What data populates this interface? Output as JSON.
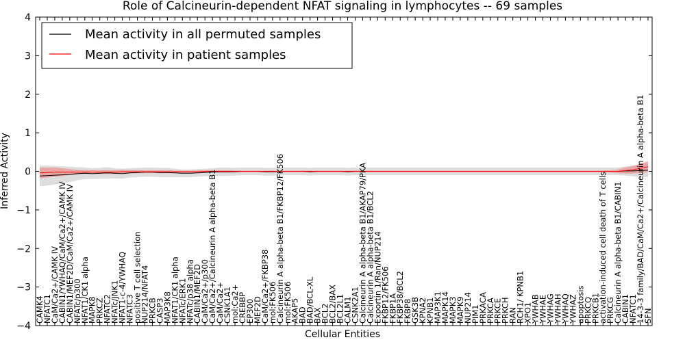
{
  "chart_data": {
    "type": "line",
    "title": "Role of Calcineurin-dependent NFAT signaling in lymphocytes -- 69 samples",
    "xlabel": "Cellular Entities",
    "ylabel": "Inferred Activity",
    "ylim": [
      -4,
      4
    ],
    "yticks": [
      -4,
      -3,
      -2,
      -1,
      0,
      1,
      2,
      3,
      4
    ],
    "ytick_labels": [
      "−4",
      "−3",
      "−2",
      "−1",
      "0",
      "1",
      "2",
      "3",
      "4"
    ],
    "grid": false,
    "legend_position": "top-left",
    "categories": [
      "CAMK4",
      "NFATC1",
      "CaM/Ca2+/CAMK IV",
      "CABIN1/YWHAQ/CaM/Ca2+/CAMK IV",
      "CABIN1/MEF2D/CaM/Ca2+/CAMK IV",
      "NFATc/p300",
      "NFAT1/CK1 alpha",
      "MAPK8",
      "PRKCZ",
      "NFATC2",
      "NFATc/JNK1",
      "NFAT1-c-4/YWHAQ",
      "NFATC3",
      "positive T cell selection",
      "NUP214/NFAT4",
      "PRKCB",
      "CASP3",
      "MAP3K8",
      "NFAT1/CK1 alpha",
      "NFATc/ERK1",
      "NFATc/p38 alpha",
      "CABIN1/MEF2D",
      "CaM/Ca2+/p300",
      "CaM/Ca2+/Calcineurin A alpha-beta B1",
      "CaM/Ca2+",
      "CSNK1A1",
      "mol:Ca2+",
      "CREBBP",
      "EP300",
      "MEF2D",
      "CaM/Ca2+/FKBP38",
      "mol:FK506",
      "Calcineurin A alpha-beta B1/FKBP12/FK506",
      "mol:FK506",
      "AKAP5",
      "BAD",
      "BAD/BCL-XL",
      "BAX",
      "BCL2",
      "BCL2/BAX",
      "BCL2L1",
      "CALM1",
      "CSNK2A1",
      "Calcineurin A alpha-beta B1/AKAP79/PKA",
      "Calcineurin A alpha-beta B1/BCL2",
      "Exportin 1/Ran/NUP214",
      "FKBP12/FK506",
      "FKBP1A",
      "FKBP38/BCL2",
      "FKBP8",
      "GSK3B",
      "KPNA2",
      "KPNB1",
      "MAP3K1",
      "MAPK14",
      "MAPK3",
      "MAPK9",
      "NUP214",
      "PIM1",
      "PRKACA",
      "PRKCA",
      "PRKCE",
      "PRKCH",
      "RAN",
      "RCH1/ KPNB1",
      "XPO1",
      "YWHAB",
      "YWHAE",
      "YWHAG",
      "YWHAH",
      "YWHAQ",
      "YWHAZ",
      "apoptosis",
      "PRKCQ",
      "PRKCB1",
      "activation-induced cell death of T cells",
      "PRKCG",
      "Calcineurin A alpha-beta B1/CABIN1",
      "CABIN1",
      "NFATC1",
      "14-3-3 family/BAD/CaM/Ca2+/Calcineurin A alpha-beta B1",
      "SFN"
    ],
    "series": [
      {
        "name": "Mean activity in all permuted samples",
        "color": "#000000",
        "values": [
          -0.12,
          -0.11,
          -0.1,
          -0.09,
          -0.08,
          -0.06,
          -0.05,
          -0.06,
          -0.05,
          -0.04,
          -0.05,
          -0.06,
          -0.04,
          -0.03,
          -0.02,
          -0.02,
          -0.03,
          -0.03,
          -0.04,
          -0.05,
          -0.05,
          -0.04,
          -0.03,
          -0.02,
          -0.01,
          -0.01,
          -0.01,
          0.0,
          0.0,
          0.0,
          -0.01,
          -0.01,
          0.0,
          0.0,
          0.0,
          0.0,
          -0.01,
          0.0,
          0.0,
          0.0,
          0.0,
          -0.01,
          0.0,
          0.0,
          0.0,
          0.0,
          0.0,
          0.0,
          0.0,
          0.0,
          0.0,
          0.0,
          0.0,
          0.0,
          0.0,
          0.0,
          0.0,
          0.0,
          0.0,
          0.0,
          0.0,
          0.0,
          0.0,
          0.0,
          0.0,
          0.0,
          0.0,
          0.0,
          0.0,
          0.0,
          0.0,
          0.0,
          0.0,
          0.0,
          0.0,
          0.0,
          0.0,
          0.0,
          0.01,
          0.01,
          0.02,
          0.03
        ],
        "band": [
          0.27,
          0.26,
          0.24,
          0.22,
          0.2,
          0.17,
          0.15,
          0.14,
          0.14,
          0.15,
          0.13,
          0.13,
          0.12,
          0.12,
          0.12,
          0.12,
          0.12,
          0.12,
          0.11,
          0.1,
          0.1,
          0.1,
          0.1,
          0.1,
          0.11,
          0.11,
          0.1,
          0.1,
          0.1,
          0.1,
          0.1,
          0.1,
          0.1,
          0.1,
          0.1,
          0.1,
          0.1,
          0.1,
          0.1,
          0.1,
          0.1,
          0.1,
          0.1,
          0.1,
          0.1,
          0.1,
          0.1,
          0.1,
          0.1,
          0.1,
          0.1,
          0.1,
          0.1,
          0.1,
          0.1,
          0.1,
          0.1,
          0.1,
          0.1,
          0.1,
          0.1,
          0.1,
          0.1,
          0.1,
          0.1,
          0.1,
          0.1,
          0.1,
          0.1,
          0.1,
          0.1,
          0.1,
          0.1,
          0.1,
          0.1,
          0.1,
          0.1,
          0.1,
          0.12,
          0.14,
          0.16,
          0.18
        ]
      },
      {
        "name": "Mean activity in patient samples",
        "color": "#ff0000",
        "values": [
          -0.04,
          -0.03,
          -0.02,
          -0.02,
          -0.02,
          -0.02,
          -0.02,
          -0.02,
          -0.02,
          -0.02,
          -0.02,
          -0.01,
          -0.01,
          -0.01,
          -0.01,
          -0.01,
          -0.01,
          -0.01,
          -0.01,
          -0.01,
          -0.01,
          -0.01,
          0.0,
          0.0,
          0.0,
          0.0,
          0.0,
          0.0,
          0.0,
          0.0,
          0.0,
          0.0,
          0.0,
          0.0,
          0.0,
          0.0,
          0.0,
          0.0,
          0.0,
          0.0,
          0.0,
          0.0,
          0.0,
          0.0,
          0.0,
          0.0,
          0.0,
          0.0,
          0.0,
          0.0,
          0.0,
          0.0,
          0.0,
          0.0,
          0.0,
          0.0,
          0.0,
          0.0,
          0.0,
          0.0,
          0.0,
          0.0,
          0.0,
          0.0,
          0.0,
          0.0,
          0.0,
          0.0,
          0.0,
          0.0,
          0.0,
          0.0,
          0.0,
          0.0,
          0.0,
          0.0,
          0.0,
          0.0,
          0.02,
          0.04,
          0.08,
          0.12
        ],
        "band": [
          0.14,
          0.13,
          0.12,
          0.1,
          0.08,
          0.06,
          0.05,
          0.05,
          0.05,
          0.05,
          0.05,
          0.05,
          0.04,
          0.04,
          0.04,
          0.04,
          0.04,
          0.04,
          0.03,
          0.03,
          0.03,
          0.03,
          0.03,
          0.03,
          0.03,
          0.03,
          0.02,
          0.02,
          0.02,
          0.02,
          0.02,
          0.02,
          0.02,
          0.02,
          0.02,
          0.02,
          0.02,
          0.02,
          0.02,
          0.02,
          0.02,
          0.02,
          0.02,
          0.02,
          0.02,
          0.02,
          0.02,
          0.02,
          0.02,
          0.02,
          0.02,
          0.02,
          0.02,
          0.02,
          0.02,
          0.02,
          0.02,
          0.02,
          0.02,
          0.02,
          0.02,
          0.02,
          0.02,
          0.02,
          0.02,
          0.02,
          0.02,
          0.02,
          0.02,
          0.02,
          0.02,
          0.02,
          0.02,
          0.02,
          0.02,
          0.02,
          0.03,
          0.05,
          0.08,
          0.1,
          0.12,
          0.14
        ]
      }
    ],
    "band_colors": [
      "#cccccc",
      "#f08080"
    ]
  }
}
